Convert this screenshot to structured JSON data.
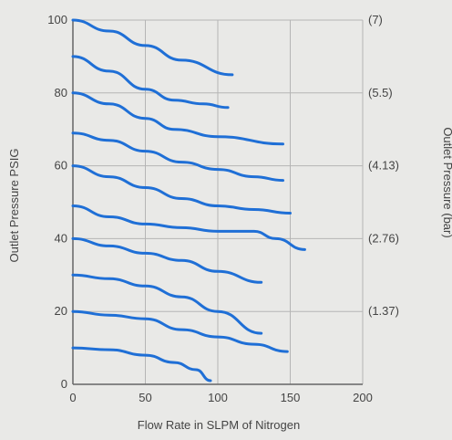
{
  "chart_data": {
    "type": "line",
    "title": "",
    "xlabel": "Flow Rate in SLPM of Nitrogen",
    "ylabel": "Outlet Pressure PSIG",
    "y2label": "Outlet Pressure (bar)",
    "xlim": [
      0,
      200
    ],
    "ylim": [
      0,
      100
    ],
    "xticks": [
      "0",
      "50",
      "100",
      "150",
      "200"
    ],
    "yticks": [
      "0",
      "20",
      "40",
      "60",
      "80",
      "100"
    ],
    "y2ticks": [
      {
        "y": 100,
        "label": "(7)"
      },
      {
        "y": 80,
        "label": "(5.5)"
      },
      {
        "y": 60,
        "label": "(4.13)"
      },
      {
        "y": 40,
        "label": "(2.76)"
      },
      {
        "y": 20,
        "label": "(1.37)"
      }
    ],
    "grid": true,
    "colors": {
      "series": "#1f6fd6",
      "grid": "#b5b5b5",
      "background": "#e9e9e7",
      "text": "#444444"
    },
    "series": [
      {
        "x": [
          0,
          25,
          50,
          75,
          110
        ],
        "y": [
          100,
          97,
          93,
          89,
          85
        ]
      },
      {
        "x": [
          0,
          25,
          50,
          70,
          90,
          107
        ],
        "y": [
          90,
          86,
          81,
          78,
          77,
          76
        ]
      },
      {
        "x": [
          0,
          25,
          50,
          70,
          100,
          145
        ],
        "y": [
          80,
          77,
          73,
          70,
          68,
          66
        ]
      },
      {
        "x": [
          0,
          25,
          50,
          75,
          100,
          125,
          145
        ],
        "y": [
          69,
          67,
          64,
          61,
          59,
          57,
          56
        ]
      },
      {
        "x": [
          0,
          25,
          50,
          75,
          100,
          125,
          150
        ],
        "y": [
          60,
          57,
          54,
          51,
          49,
          48,
          47
        ]
      },
      {
        "x": [
          0,
          25,
          50,
          75,
          100,
          125,
          140,
          160
        ],
        "y": [
          49,
          46,
          44,
          43,
          42,
          42,
          40,
          37
        ]
      },
      {
        "x": [
          0,
          25,
          50,
          75,
          100,
          130
        ],
        "y": [
          40,
          38,
          36,
          34,
          31,
          28
        ]
      },
      {
        "x": [
          0,
          25,
          50,
          75,
          100,
          130
        ],
        "y": [
          30,
          29,
          27,
          24,
          20,
          14
        ]
      },
      {
        "x": [
          0,
          25,
          50,
          75,
          100,
          125,
          148
        ],
        "y": [
          20,
          19,
          18,
          15,
          13,
          11,
          9
        ]
      },
      {
        "x": [
          0,
          25,
          50,
          70,
          85,
          95
        ],
        "y": [
          10,
          9.5,
          8,
          6,
          4,
          1
        ]
      }
    ]
  }
}
